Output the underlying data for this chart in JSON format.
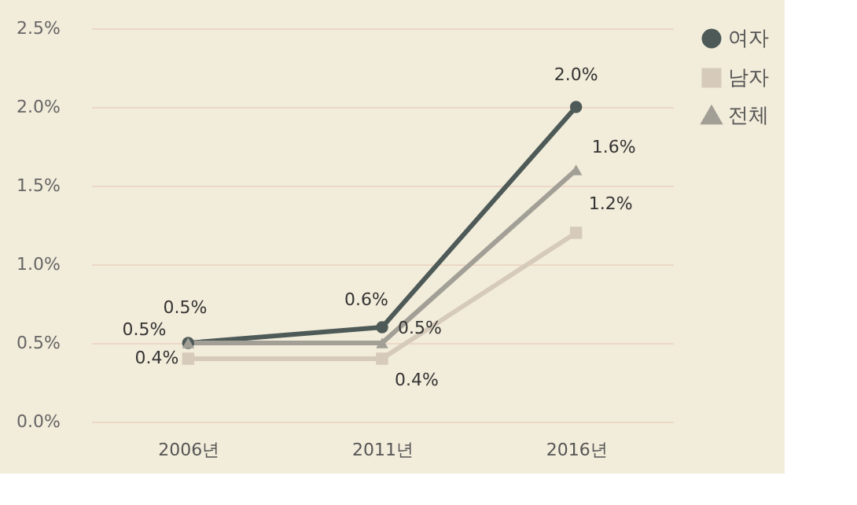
{
  "chart_data": {
    "type": "line",
    "categories": [
      "2006년",
      "2011년",
      "2016년"
    ],
    "series": [
      {
        "name": "여자",
        "color": "#4d5a57",
        "marker": "circle",
        "values": [
          0.5,
          0.6,
          2.0
        ],
        "value_labels": [
          "0.5%",
          "0.6%",
          "2.0%"
        ]
      },
      {
        "name": "남자",
        "color": "#d6cbba",
        "marker": "square",
        "values": [
          0.4,
          0.4,
          1.2
        ],
        "value_labels": [
          "0.4%",
          "0.4%",
          "1.2%"
        ]
      },
      {
        "name": "전체",
        "color": "#a29f96",
        "marker": "triangle",
        "values": [
          0.5,
          0.5,
          1.6
        ],
        "value_labels": [
          "0.5%",
          "0.5%",
          "1.6%"
        ]
      }
    ],
    "ylim": [
      0,
      2.5
    ],
    "yticks": [
      {
        "value": 0,
        "label": "0.0%"
      },
      {
        "value": 0.5,
        "label": "0.5%"
      },
      {
        "value": 1.0,
        "label": "1.0%"
      },
      {
        "value": 1.5,
        "label": "1.5%"
      },
      {
        "value": 2.0,
        "label": "2.0%"
      },
      {
        "value": 2.5,
        "label": "2.5%"
      }
    ],
    "grid": "y",
    "legend": "right",
    "line_style": "solid"
  }
}
